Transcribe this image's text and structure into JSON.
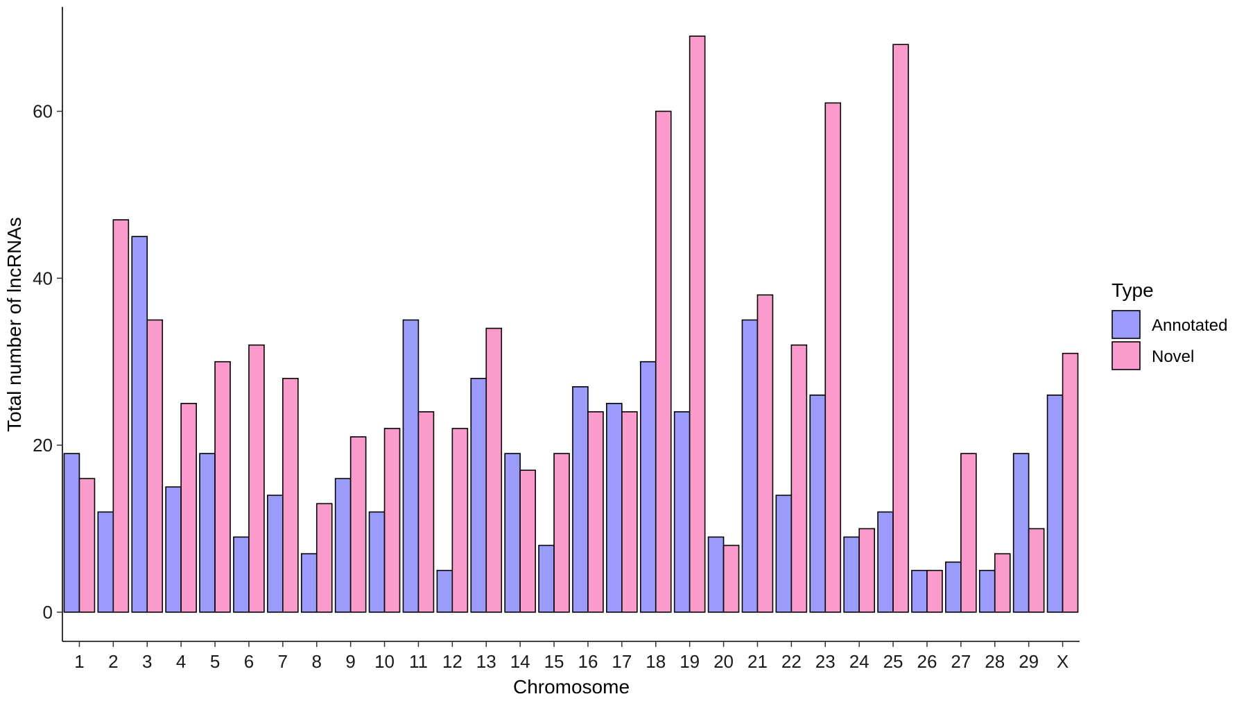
{
  "chart_data": {
    "type": "bar",
    "title": "",
    "xlabel": "Chromosome",
    "ylabel": "Total number of lncRNAs",
    "categories": [
      "1",
      "2",
      "3",
      "4",
      "5",
      "6",
      "7",
      "8",
      "9",
      "10",
      "11",
      "12",
      "13",
      "14",
      "15",
      "16",
      "17",
      "18",
      "19",
      "20",
      "21",
      "22",
      "23",
      "24",
      "25",
      "26",
      "27",
      "28",
      "29",
      "X"
    ],
    "series": [
      {
        "name": "Annotated",
        "color": "#9b9bfb",
        "values": [
          19,
          12,
          45,
          15,
          19,
          9,
          14,
          7,
          16,
          12,
          35,
          5,
          28,
          19,
          8,
          27,
          25,
          30,
          24,
          9,
          35,
          14,
          26,
          9,
          12,
          5,
          6,
          5,
          19,
          26
        ]
      },
      {
        "name": "Novel",
        "color": "#fb9bcb",
        "values": [
          16,
          47,
          35,
          25,
          30,
          32,
          28,
          13,
          21,
          22,
          24,
          22,
          34,
          17,
          19,
          24,
          24,
          60,
          69,
          8,
          38,
          32,
          61,
          10,
          68,
          5,
          19,
          7,
          10,
          31
        ]
      }
    ],
    "ylim": [
      -3.5,
      72.5
    ],
    "yticks": [
      0,
      20,
      40,
      60
    ],
    "grid": false,
    "legend": {
      "title": "Type",
      "position": "right"
    }
  }
}
